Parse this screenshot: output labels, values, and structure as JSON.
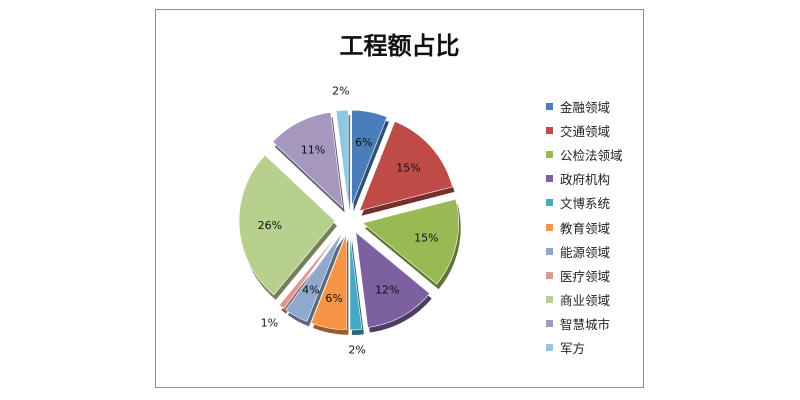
{
  "chart_data": {
    "type": "pie",
    "title": "工程额占比",
    "categories": [
      "金融领域",
      "交通领域",
      "公检法领域",
      "政府机构",
      "文博系统",
      "教育领域",
      "能源领域",
      "医疗领域",
      "商业领域",
      "智慧城市",
      "军方"
    ],
    "values": [
      6,
      15,
      15,
      12,
      2,
      6,
      4,
      1,
      26,
      11,
      2
    ],
    "value_labels": [
      "6%",
      "15%",
      "15%",
      "12%",
      "2%",
      "6%",
      "4%",
      "1%",
      "26%",
      "11%",
      "2%"
    ],
    "colors": [
      "#4a7ebb",
      "#be4b48",
      "#98b954",
      "#7d60a0",
      "#46aac5",
      "#f69546",
      "#8ea9cd",
      "#dc9895",
      "#b8d08e",
      "#a597bd",
      "#8fc7e0"
    ],
    "legend_position": "right",
    "exploded": true,
    "style": "3d"
  }
}
